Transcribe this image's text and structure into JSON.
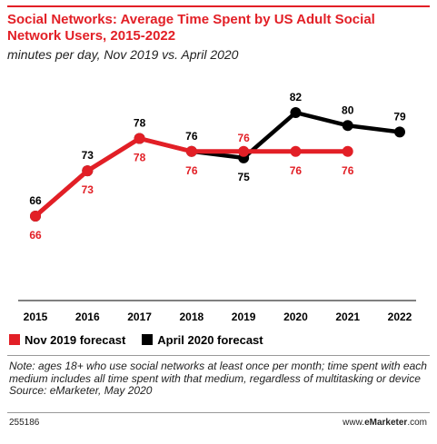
{
  "header": {
    "title": "Social Networks: Average Time Spent by US Adult Social Network Users, 2015-2022",
    "subtitle": "minutes per day, Nov 2019 vs. April 2020"
  },
  "chart_data": {
    "type": "line",
    "x": [
      "2015",
      "2016",
      "2017",
      "2018",
      "2019",
      "2020",
      "2021",
      "2022"
    ],
    "series": [
      {
        "name": "Nov 2019 forecast",
        "color": "#e21f26",
        "x": [
          "2015",
          "2016",
          "2017",
          "2018",
          "2019",
          "2020",
          "2021"
        ],
        "values": [
          66,
          73,
          78,
          76,
          76,
          76,
          76
        ]
      },
      {
        "name": "April 2020 forecast",
        "color": "#000000",
        "x": [
          "2015",
          "2016",
          "2017",
          "2018",
          "2019",
          "2020",
          "2021",
          "2022"
        ],
        "values": [
          66,
          73,
          78,
          76,
          75,
          82,
          80,
          79
        ]
      }
    ],
    "legend_position": "bottom-left",
    "grid": false
  },
  "notes": {
    "text": "Note: ages 18+ who use social networks at least once per month; time spent with each medium includes all time spent with that medium, regardless of multitasking or device",
    "source": "Source: eMarketer, May 2020"
  },
  "footer": {
    "chart_id": "255186",
    "brand_prefix": "www.",
    "brand_bold": "eMarketer",
    "brand_suffix": ".com"
  }
}
